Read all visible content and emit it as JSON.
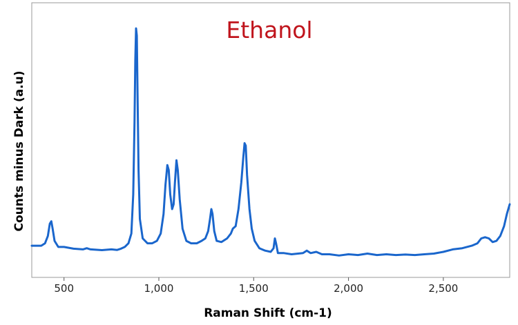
{
  "chart_data": {
    "type": "line",
    "title": "Ethanol",
    "xlabel": "Raman Shift (cm-1)",
    "ylabel": "Counts minus Dark (a.u)",
    "xlim": [
      330,
      2850
    ],
    "ylim": [
      0,
      100
    ],
    "x_ticks": [
      500,
      1000,
      1500,
      2000,
      2500
    ],
    "x_tick_labels": [
      "500",
      "1,000",
      "1,500",
      "2,000",
      "2,500"
    ],
    "grid": false,
    "legend": "none",
    "colors": {
      "line": "#1a66cc",
      "title": "#c0141c",
      "frame": "#9a9a9a"
    },
    "series": [
      {
        "points": [
          [
            330,
            9
          ],
          [
            350,
            9
          ],
          [
            380,
            9
          ],
          [
            400,
            10
          ],
          [
            415,
            13
          ],
          [
            425,
            18
          ],
          [
            433,
            19
          ],
          [
            440,
            16
          ],
          [
            450,
            11
          ],
          [
            470,
            8.5
          ],
          [
            500,
            8.5
          ],
          [
            550,
            7.8
          ],
          [
            600,
            7.5
          ],
          [
            620,
            8
          ],
          [
            640,
            7.5
          ],
          [
            700,
            7.2
          ],
          [
            750,
            7.5
          ],
          [
            780,
            7.3
          ],
          [
            800,
            7.8
          ],
          [
            820,
            8.5
          ],
          [
            840,
            10
          ],
          [
            855,
            14
          ],
          [
            865,
            30
          ],
          [
            872,
            60
          ],
          [
            876,
            85
          ],
          [
            880,
            98
          ],
          [
            884,
            95
          ],
          [
            888,
            70
          ],
          [
            893,
            40
          ],
          [
            900,
            20
          ],
          [
            915,
            12
          ],
          [
            940,
            10
          ],
          [
            965,
            10
          ],
          [
            990,
            11
          ],
          [
            1010,
            14
          ],
          [
            1025,
            22
          ],
          [
            1035,
            34
          ],
          [
            1045,
            42
          ],
          [
            1052,
            40
          ],
          [
            1060,
            30
          ],
          [
            1070,
            24
          ],
          [
            1078,
            26
          ],
          [
            1085,
            35
          ],
          [
            1093,
            44
          ],
          [
            1100,
            40
          ],
          [
            1110,
            28
          ],
          [
            1125,
            16
          ],
          [
            1145,
            11
          ],
          [
            1170,
            10
          ],
          [
            1200,
            10
          ],
          [
            1225,
            11
          ],
          [
            1245,
            12
          ],
          [
            1260,
            15
          ],
          [
            1270,
            20
          ],
          [
            1277,
            24
          ],
          [
            1283,
            22
          ],
          [
            1292,
            15
          ],
          [
            1305,
            11
          ],
          [
            1330,
            10.5
          ],
          [
            1360,
            12
          ],
          [
            1380,
            14
          ],
          [
            1390,
            16
          ],
          [
            1405,
            17
          ],
          [
            1420,
            24
          ],
          [
            1435,
            35
          ],
          [
            1445,
            45
          ],
          [
            1452,
            51
          ],
          [
            1458,
            50
          ],
          [
            1465,
            38
          ],
          [
            1478,
            24
          ],
          [
            1490,
            16
          ],
          [
            1505,
            11
          ],
          [
            1530,
            8
          ],
          [
            1560,
            7
          ],
          [
            1590,
            6.5
          ],
          [
            1605,
            8
          ],
          [
            1612,
            12
          ],
          [
            1618,
            10
          ],
          [
            1628,
            6
          ],
          [
            1660,
            6
          ],
          [
            1700,
            5.5
          ],
          [
            1760,
            6
          ],
          [
            1780,
            7
          ],
          [
            1800,
            6
          ],
          [
            1830,
            6.5
          ],
          [
            1860,
            5.5
          ],
          [
            1900,
            5.5
          ],
          [
            1950,
            5
          ],
          [
            2000,
            5.5
          ],
          [
            2050,
            5.2
          ],
          [
            2100,
            5.8
          ],
          [
            2150,
            5.2
          ],
          [
            2200,
            5.5
          ],
          [
            2250,
            5.2
          ],
          [
            2300,
            5.4
          ],
          [
            2350,
            5.2
          ],
          [
            2400,
            5.5
          ],
          [
            2450,
            5.8
          ],
          [
            2500,
            6.5
          ],
          [
            2550,
            7.5
          ],
          [
            2600,
            8
          ],
          [
            2650,
            9
          ],
          [
            2680,
            10
          ],
          [
            2700,
            12
          ],
          [
            2720,
            12.5
          ],
          [
            2740,
            12
          ],
          [
            2760,
            10.5
          ],
          [
            2780,
            11
          ],
          [
            2800,
            13
          ],
          [
            2820,
            17
          ],
          [
            2835,
            22
          ],
          [
            2850,
            26
          ]
        ]
      }
    ]
  }
}
